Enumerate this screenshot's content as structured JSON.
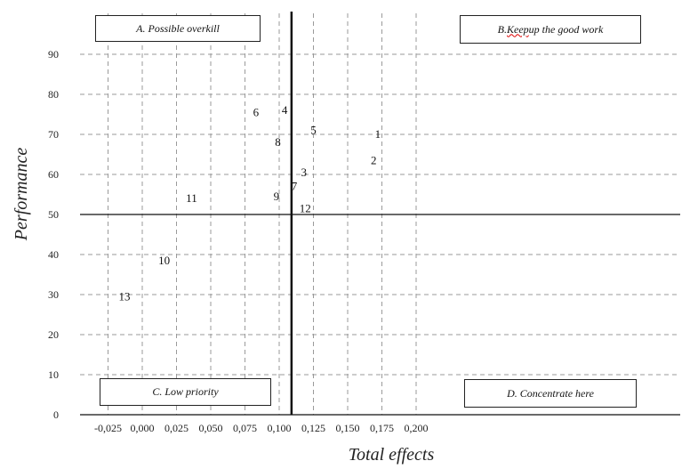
{
  "chart_data": {
    "type": "scatter",
    "title": "",
    "xlabel": "Total effects",
    "ylabel": "Performance",
    "xlim": [
      -0.025,
      0.215
    ],
    "ylim": [
      0,
      98
    ],
    "x_ticks": [
      "-0,025",
      "0,000",
      "0,025",
      "0,050",
      "0,075",
      "0,100",
      "0,125",
      "0,150",
      "0,175",
      "0,200"
    ],
    "x_tick_values": [
      -0.025,
      0,
      0.025,
      0.05,
      0.075,
      0.1,
      0.125,
      0.15,
      0.175,
      0.2
    ],
    "y_ticks": [
      "0",
      "10",
      "20",
      "30",
      "40",
      "50",
      "60",
      "70",
      "80",
      "90"
    ],
    "y_tick_values": [
      0,
      10,
      20,
      30,
      40,
      50,
      60,
      70,
      80,
      90
    ],
    "grid": true,
    "reference_lines": {
      "x": 0.109,
      "y": 50
    },
    "points": [
      {
        "label": "1",
        "x": 0.172,
        "y": 70
      },
      {
        "label": "2",
        "x": 0.169,
        "y": 63.5
      },
      {
        "label": "3",
        "x": 0.118,
        "y": 60.5
      },
      {
        "label": "4",
        "x": 0.104,
        "y": 76
      },
      {
        "label": "5",
        "x": 0.125,
        "y": 71
      },
      {
        "label": "6",
        "x": 0.083,
        "y": 75.5
      },
      {
        "label": "7",
        "x": 0.111,
        "y": 57
      },
      {
        "label": "8",
        "x": 0.099,
        "y": 68
      },
      {
        "label": "9",
        "x": 0.098,
        "y": 54.5
      },
      {
        "label": "10",
        "x": 0.016,
        "y": 38.5
      },
      {
        "label": "11",
        "x": 0.036,
        "y": 54
      },
      {
        "label": "12",
        "x": 0.119,
        "y": 51.5
      },
      {
        "label": "13",
        "x": -0.013,
        "y": 29.5
      }
    ],
    "quadrants": {
      "a": "A. Possible overkill",
      "b_prefix": "B.",
      "b_misspelled": "Keep",
      "b_rest": " up the good work",
      "c": "C. Low priority",
      "d": "D. Concentrate here"
    }
  }
}
